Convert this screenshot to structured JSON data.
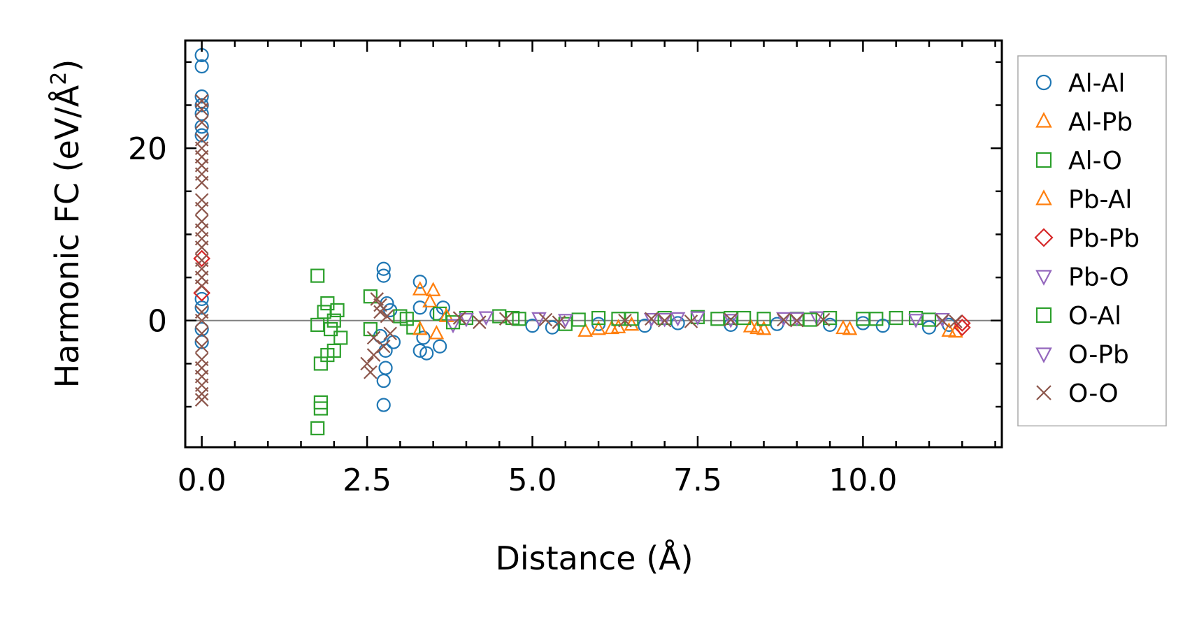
{
  "chart_data": {
    "type": "scatter",
    "title": "",
    "xlabel": "Distance (Å)",
    "ylabel_main": "Harmonic FC (eV/Å",
    "ylabel_sup": "2",
    "ylabel_close": ")",
    "xlim": [
      -0.25,
      12.1
    ],
    "ylim": [
      -14.7,
      32.5
    ],
    "x_ticks": [
      0.0,
      2.5,
      5.0,
      7.5,
      10.0
    ],
    "x_tick_labels": [
      "0.0",
      "2.5",
      "5.0",
      "7.5",
      "10.0"
    ],
    "y_ticks": [
      0,
      20
    ],
    "y_tick_labels": [
      "0",
      "20"
    ],
    "x_minor_step": 0.5,
    "y_minor_step": 5,
    "zero_line": true,
    "legend_position": "outside-right",
    "series": [
      {
        "name": "Al-Al",
        "marker": "circle",
        "color": "#1f77b4",
        "points": [
          [
            0.0,
            30.8
          ],
          [
            0.0,
            29.5
          ],
          [
            0.0,
            26.0
          ],
          [
            0.0,
            25.0
          ],
          [
            0.0,
            24.0
          ],
          [
            0.0,
            22.5
          ],
          [
            0.0,
            21.5
          ],
          [
            0.0,
            2.5
          ],
          [
            0.0,
            1.5
          ],
          [
            0.0,
            -1.0
          ],
          [
            0.0,
            -2.5
          ],
          [
            2.75,
            6.0
          ],
          [
            2.75,
            5.2
          ],
          [
            2.78,
            -3.5
          ],
          [
            2.78,
            -5.5
          ],
          [
            2.75,
            -7.0
          ],
          [
            2.75,
            -9.8
          ],
          [
            2.8,
            2.0
          ],
          [
            2.85,
            1.2
          ],
          [
            2.7,
            -1.8
          ],
          [
            2.9,
            -2.5
          ],
          [
            3.3,
            4.5
          ],
          [
            3.3,
            1.5
          ],
          [
            3.35,
            -2.0
          ],
          [
            3.3,
            -3.5
          ],
          [
            3.4,
            -3.8
          ],
          [
            3.6,
            -3.0
          ],
          [
            3.65,
            1.5
          ],
          [
            3.55,
            0.8
          ],
          [
            5.0,
            -0.6
          ],
          [
            5.3,
            -0.8
          ],
          [
            6.0,
            -0.4
          ],
          [
            6.7,
            -0.6
          ],
          [
            7.2,
            -0.3
          ],
          [
            8.0,
            -0.5
          ],
          [
            8.7,
            -0.4
          ],
          [
            9.5,
            -0.5
          ],
          [
            10.0,
            -0.3
          ],
          [
            10.3,
            -0.6
          ],
          [
            11.0,
            -0.8
          ],
          [
            11.3,
            -0.5
          ]
        ]
      },
      {
        "name": "Al-Pb",
        "marker": "triangle-up",
        "color": "#ff7f0e",
        "points": [
          [
            3.3,
            3.6
          ],
          [
            3.5,
            3.5
          ],
          [
            3.45,
            2.2
          ],
          [
            3.55,
            -1.5
          ],
          [
            5.8,
            -1.2
          ],
          [
            6.0,
            -1.0
          ],
          [
            6.3,
            -0.8
          ],
          [
            6.5,
            -0.5
          ],
          [
            8.4,
            -0.9
          ],
          [
            8.5,
            -1.0
          ],
          [
            9.8,
            -1.0
          ],
          [
            11.3,
            -1.2
          ]
        ]
      },
      {
        "name": "Al-O",
        "marker": "square",
        "color": "#2ca02c",
        "points": [
          [
            1.75,
            5.2
          ],
          [
            1.75,
            -0.5
          ],
          [
            1.8,
            -5.0
          ],
          [
            1.8,
            -9.5
          ],
          [
            1.8,
            -10.2
          ],
          [
            1.75,
            -12.5
          ],
          [
            1.9,
            2.0
          ],
          [
            1.95,
            -1.0
          ],
          [
            2.0,
            -3.5
          ],
          [
            2.05,
            1.2
          ],
          [
            2.1,
            -2.0
          ],
          [
            2.55,
            2.8
          ],
          [
            2.55,
            -1.0
          ],
          [
            3.0,
            0.5
          ],
          [
            3.2,
            -0.8
          ],
          [
            3.6,
            0.8
          ],
          [
            4.0,
            0.3
          ],
          [
            4.5,
            0.5
          ],
          [
            4.8,
            0.2
          ],
          [
            5.5,
            -0.4
          ],
          [
            6.0,
            0.3
          ],
          [
            6.5,
            0.2
          ],
          [
            7.0,
            0.3
          ],
          [
            7.5,
            0.4
          ],
          [
            8.0,
            0.3
          ],
          [
            8.5,
            0.2
          ],
          [
            9.0,
            0.2
          ],
          [
            9.5,
            0.3
          ],
          [
            10.0,
            0.2
          ],
          [
            10.5,
            0.3
          ],
          [
            11.0,
            0.1
          ]
        ]
      },
      {
        "name": "Pb-Al",
        "marker": "triangle-up",
        "color": "#ff7f0e",
        "points": [
          [
            3.3,
            -1.0
          ],
          [
            3.7,
            0.5
          ],
          [
            6.2,
            -0.9
          ],
          [
            8.3,
            -0.7
          ],
          [
            9.7,
            -0.9
          ],
          [
            11.4,
            -1.3
          ]
        ]
      },
      {
        "name": "Pb-Pb",
        "marker": "diamond",
        "color": "#d62728",
        "points": [
          [
            0.0,
            7.2
          ],
          [
            0.0,
            3.2
          ],
          [
            11.5,
            -0.8
          ],
          [
            11.5,
            -0.3
          ]
        ]
      },
      {
        "name": "Pb-O",
        "marker": "triangle-down",
        "color": "#9467bd",
        "points": [
          [
            3.8,
            -0.5
          ],
          [
            4.3,
            0.4
          ],
          [
            5.1,
            0.3
          ],
          [
            6.8,
            0.2
          ],
          [
            7.2,
            0.3
          ],
          [
            7.5,
            0.4
          ],
          [
            8.8,
            0.3
          ],
          [
            9.3,
            0.4
          ],
          [
            11.2,
            0.2
          ]
        ]
      },
      {
        "name": "O-Al",
        "marker": "square",
        "color": "#2ca02c",
        "points": [
          [
            1.85,
            1.0
          ],
          [
            1.9,
            -4.0
          ],
          [
            2.0,
            0.0
          ],
          [
            3.1,
            0.2
          ],
          [
            3.8,
            -0.2
          ],
          [
            4.7,
            0.3
          ],
          [
            5.7,
            0.1
          ],
          [
            6.3,
            0.2
          ],
          [
            7.8,
            0.2
          ],
          [
            8.2,
            0.3
          ],
          [
            9.2,
            0.1
          ],
          [
            10.2,
            0.2
          ],
          [
            10.8,
            0.3
          ]
        ]
      },
      {
        "name": "O-Pb",
        "marker": "triangle-down",
        "color": "#9467bd",
        "points": [
          [
            4.0,
            0.2
          ],
          [
            5.5,
            0.1
          ],
          [
            7.0,
            0.2
          ],
          [
            8.0,
            0.1
          ],
          [
            9.0,
            0.3
          ],
          [
            10.8,
            0.1
          ]
        ]
      },
      {
        "name": "O-O",
        "marker": "x",
        "color": "#8c564b",
        "points": [
          [
            0.0,
            25.5
          ],
          [
            0.0,
            24.5
          ],
          [
            0.0,
            23.0
          ],
          [
            0.0,
            21.0
          ],
          [
            0.0,
            20.0
          ],
          [
            0.0,
            19.0
          ],
          [
            0.0,
            18.0
          ],
          [
            0.0,
            17.0
          ],
          [
            0.0,
            16.0
          ],
          [
            0.0,
            14.0
          ],
          [
            0.0,
            13.0
          ],
          [
            0.0,
            11.5
          ],
          [
            0.0,
            10.5
          ],
          [
            0.0,
            9.5
          ],
          [
            0.0,
            8.5
          ],
          [
            0.0,
            7.0
          ],
          [
            0.0,
            6.0
          ],
          [
            0.0,
            5.0
          ],
          [
            0.0,
            4.0
          ],
          [
            0.0,
            1.0
          ],
          [
            0.0,
            0.0
          ],
          [
            0.0,
            -1.5
          ],
          [
            0.0,
            -3.0
          ],
          [
            0.0,
            -4.5
          ],
          [
            0.0,
            -5.5
          ],
          [
            0.0,
            -6.5
          ],
          [
            0.0,
            -7.5
          ],
          [
            0.0,
            -8.5
          ],
          [
            0.0,
            -9.2
          ],
          [
            2.5,
            -5.0
          ],
          [
            2.55,
            -6.0
          ],
          [
            2.6,
            -4.0
          ],
          [
            2.65,
            2.5
          ],
          [
            2.7,
            1.8
          ],
          [
            2.75,
            -3.0
          ],
          [
            2.8,
            0.5
          ],
          [
            2.85,
            -1.5
          ],
          [
            2.6,
            -2.0
          ],
          [
            2.7,
            1.0
          ],
          [
            3.9,
            0.3
          ],
          [
            4.2,
            -0.2
          ],
          [
            4.6,
            0.2
          ],
          [
            5.2,
            0.1
          ],
          [
            5.4,
            -0.2
          ],
          [
            6.4,
            0.0
          ],
          [
            6.8,
            0.2
          ],
          [
            7.0,
            0.0
          ],
          [
            7.4,
            -0.1
          ],
          [
            8.0,
            0.1
          ],
          [
            8.8,
            0.1
          ],
          [
            9.0,
            0.0
          ],
          [
            9.4,
            0.1
          ],
          [
            11.2,
            0.0
          ],
          [
            11.4,
            -0.1
          ]
        ]
      }
    ]
  }
}
